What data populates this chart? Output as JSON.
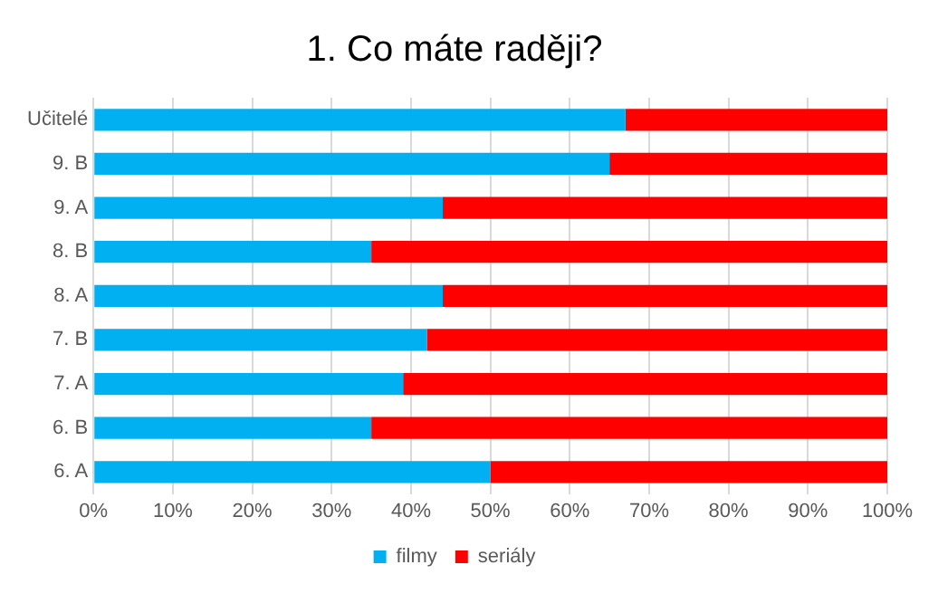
{
  "chart_data": {
    "type": "bar",
    "title": "1. Co máte raději?",
    "orientation": "horizontal",
    "stacked": true,
    "categories": [
      "Učitelé",
      "9. B",
      "9. A",
      "8. B",
      "8. A",
      "7. B",
      "7. A",
      "6. B",
      "6. A"
    ],
    "series": [
      {
        "name": "filmy",
        "color": "#00b0f0",
        "values": [
          67,
          65,
          44,
          35,
          44,
          42,
          39,
          35,
          50
        ]
      },
      {
        "name": "seriály",
        "color": "#ff0000",
        "values": [
          33,
          35,
          56,
          65,
          56,
          58,
          61,
          65,
          50
        ]
      }
    ],
    "xlim": [
      0,
      100
    ],
    "xticks": [
      {
        "value": 0,
        "label": "0%"
      },
      {
        "value": 10,
        "label": "10%"
      },
      {
        "value": 20,
        "label": "20%"
      },
      {
        "value": 30,
        "label": "30%"
      },
      {
        "value": 40,
        "label": "40%"
      },
      {
        "value": 50,
        "label": "50%"
      },
      {
        "value": 60,
        "label": "60%"
      },
      {
        "value": 70,
        "label": "70%"
      },
      {
        "value": 80,
        "label": "80%"
      },
      {
        "value": 90,
        "label": "90%"
      },
      {
        "value": 100,
        "label": "100%"
      }
    ],
    "grid": "x",
    "legend": "bottom"
  }
}
